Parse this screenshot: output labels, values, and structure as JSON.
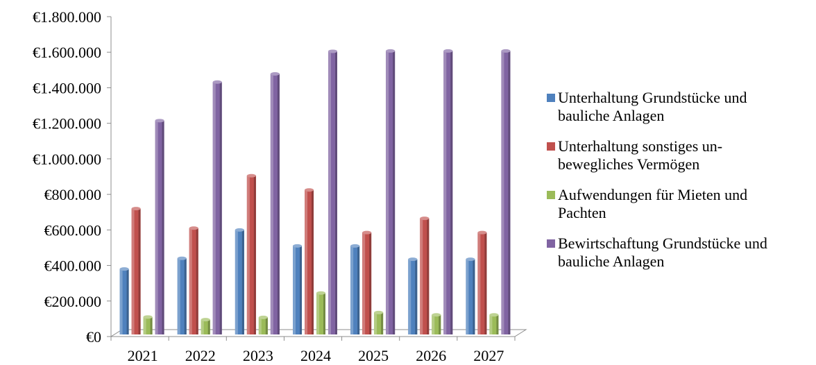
{
  "chart_data": {
    "type": "bar",
    "categories": [
      "2021",
      "2022",
      "2023",
      "2024",
      "2025",
      "2026",
      "2027"
    ],
    "series": [
      {
        "name": "Unterhaltung Grundstücke und\nbauliche Anlagen",
        "color": "#4F81BD",
        "values": [
          380000,
          440000,
          600000,
          510000,
          510000,
          435000,
          435000
        ]
      },
      {
        "name": "Unterhaltung sonstiges un-\nbewegliches Vermögen",
        "color": "#C0504D",
        "values": [
          720000,
          610000,
          905000,
          825000,
          585000,
          665000,
          585000
        ]
      },
      {
        "name": "Aufwendungen für Mieten und\nPachten",
        "color": "#9BBB59",
        "values": [
          110000,
          95000,
          108000,
          245000,
          135000,
          122000,
          122000
        ]
      },
      {
        "name": "Bewirtschaftung Grundstücke und\nbauliche Anlagen",
        "color": "#8064A2",
        "values": [
          1215000,
          1432000,
          1478000,
          1605000,
          1607000,
          1607000,
          1607000
        ]
      }
    ],
    "yticks": [
      "€0",
      "€200.000",
      "€400.000",
      "€600.000",
      "€800.000",
      "€1.000.000",
      "€1.200.000",
      "€1.400.000",
      "€1.600.000",
      "€1.800.000"
    ],
    "ylim": [
      0,
      1800000
    ],
    "legend_position": "right",
    "grid": false
  }
}
